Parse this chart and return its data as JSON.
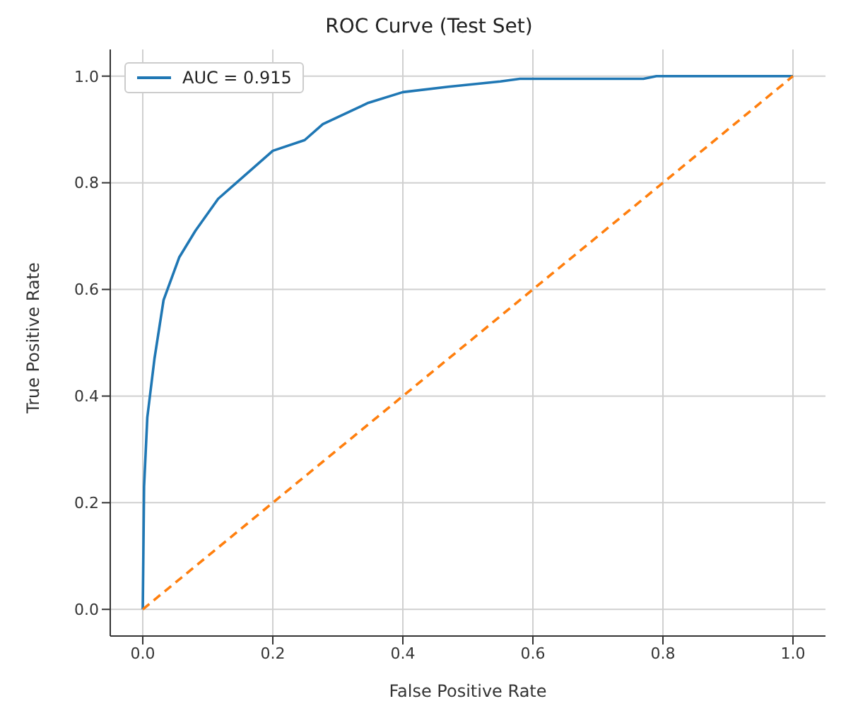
{
  "chart_data": {
    "type": "line",
    "title": "ROC Curve (Test Set)",
    "xlabel": "False Positive Rate",
    "ylabel": "True Positive Rate",
    "xlim": [
      -0.05,
      1.05
    ],
    "ylim": [
      -0.05,
      1.05
    ],
    "xticks": [
      {
        "value": 0,
        "label": "0.0"
      },
      0.2,
      0.4,
      0.6,
      0.8,
      {
        "value": 1,
        "label": "1.0"
      }
    ],
    "yticks": [
      {
        "value": 0,
        "label": "0.0"
      },
      0.2,
      0.4,
      0.6,
      0.8,
      {
        "value": 1,
        "label": "1.0"
      }
    ],
    "grid": true,
    "legend": "top left",
    "marker": "none",
    "series": [
      {
        "name": "AUC = 0.915",
        "color": "#1f77b4",
        "line_style": "solid",
        "x": [
          0,
          0.002,
          0.007,
          0.018,
          0.032,
          0.056,
          0.081,
          0.116,
          0.144,
          0.2,
          0.249,
          0.277,
          0.347,
          0.4,
          0.47,
          0.55,
          0.58,
          0.77,
          0.79,
          1.0
        ],
        "values": [
          0,
          0.23,
          0.36,
          0.47,
          0.58,
          0.66,
          0.71,
          0.77,
          0.8,
          0.86,
          0.88,
          0.91,
          0.95,
          0.97,
          0.98,
          0.99,
          0.995,
          0.995,
          1.0,
          1.0
        ]
      },
      {
        "color": "#ff7f0e",
        "line_style": "dashed",
        "x": [
          0,
          1
        ],
        "values": [
          0,
          1
        ]
      }
    ]
  }
}
